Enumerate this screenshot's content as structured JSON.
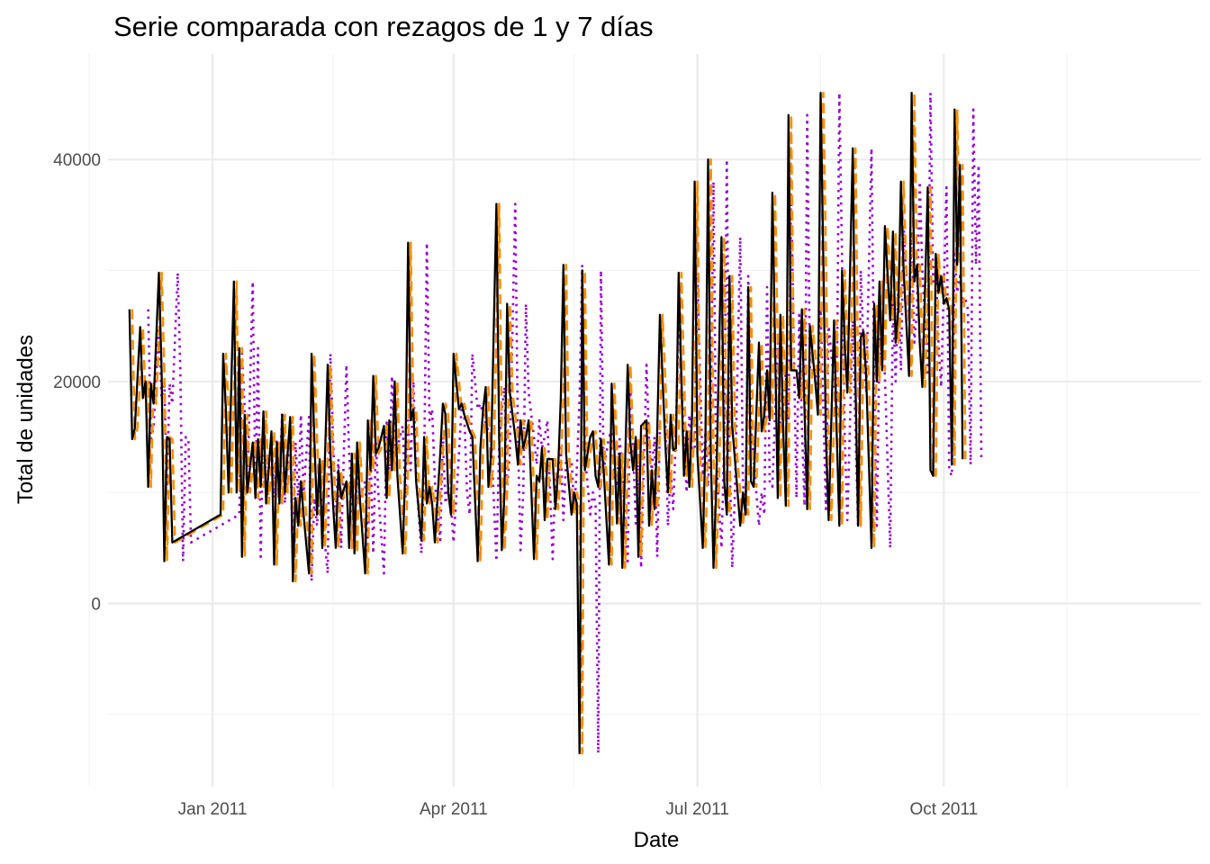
{
  "chart_data": {
    "type": "line",
    "title": "Serie comparada con rezagos de 1 y 7 días",
    "xlabel": "Date",
    "ylabel": "Total de unidades",
    "x_ticks": [
      "Jan 2011",
      "Apr 2011",
      "Jul 2011",
      "Oct 2011"
    ],
    "y_ticks": [
      "0",
      "20000",
      "40000"
    ],
    "xlim": [
      "2010-11-23",
      "2012-01-05"
    ],
    "ylim": [
      -16500,
      49500
    ],
    "legend": "none",
    "grid": true,
    "colors": {
      "serie": "#000000",
      "lag1": "#ff8c00",
      "lag7": "#9400d3"
    },
    "lags": {
      "lag1": 1,
      "lag7": 7
    },
    "series": [
      {
        "style": "solid",
        "color": "#000000",
        "points": [
          [
            "2010-12-01",
            26500
          ],
          [
            "2010-12-02",
            14800
          ],
          [
            "2010-12-03",
            15800
          ],
          [
            "2010-12-05",
            24900
          ],
          [
            "2010-12-06",
            18500
          ],
          [
            "2010-12-07",
            20000
          ],
          [
            "2010-12-08",
            10500
          ],
          [
            "2010-12-09",
            19800
          ],
          [
            "2010-12-10",
            18000
          ],
          [
            "2010-12-12",
            29800
          ],
          [
            "2010-12-13",
            21000
          ],
          [
            "2010-12-14",
            3800
          ],
          [
            "2010-12-15",
            15000
          ],
          [
            "2010-12-16",
            14800
          ],
          [
            "2010-12-17",
            5500
          ],
          [
            "2011-01-04",
            8000
          ],
          [
            "2011-01-05",
            22500
          ],
          [
            "2011-01-06",
            17500
          ],
          [
            "2011-01-07",
            10000
          ],
          [
            "2011-01-09",
            29000
          ],
          [
            "2011-01-10",
            10000
          ],
          [
            "2011-01-11",
            23000
          ],
          [
            "2011-01-12",
            4200
          ],
          [
            "2011-01-13",
            17000
          ],
          [
            "2011-01-14",
            10000
          ],
          [
            "2011-01-16",
            14500
          ],
          [
            "2011-01-17",
            9500
          ],
          [
            "2011-01-18",
            14800
          ],
          [
            "2011-01-19",
            10500
          ],
          [
            "2011-01-20",
            17300
          ],
          [
            "2011-01-21",
            9000
          ],
          [
            "2011-01-23",
            15500
          ],
          [
            "2011-01-24",
            3500
          ],
          [
            "2011-01-25",
            14500
          ],
          [
            "2011-01-26",
            9000
          ],
          [
            "2011-01-27",
            17000
          ],
          [
            "2011-01-28",
            10000
          ],
          [
            "2011-01-30",
            16800
          ],
          [
            "2011-01-31",
            2000
          ],
          [
            "2011-02-01",
            9500
          ],
          [
            "2011-02-02",
            7000
          ],
          [
            "2011-02-03",
            11000
          ],
          [
            "2011-02-04",
            8000
          ],
          [
            "2011-02-06",
            2700
          ],
          [
            "2011-02-07",
            22500
          ],
          [
            "2011-02-08",
            15000
          ],
          [
            "2011-02-09",
            8000
          ],
          [
            "2011-02-10",
            13000
          ],
          [
            "2011-02-11",
            5000
          ],
          [
            "2011-02-13",
            21500
          ],
          [
            "2011-02-14",
            13500
          ],
          [
            "2011-02-15",
            9000
          ],
          [
            "2011-02-16",
            5000
          ],
          [
            "2011-02-17",
            12000
          ],
          [
            "2011-02-18",
            9500
          ],
          [
            "2011-02-20",
            11000
          ],
          [
            "2011-02-21",
            5000
          ],
          [
            "2011-02-22",
            13500
          ],
          [
            "2011-02-23",
            4500
          ],
          [
            "2011-02-24",
            14500
          ],
          [
            "2011-02-25",
            9500
          ],
          [
            "2011-02-27",
            2700
          ],
          [
            "2011-02-28",
            16500
          ],
          [
            "2011-03-01",
            12000
          ],
          [
            "2011-03-02",
            20500
          ],
          [
            "2011-03-03",
            13500
          ],
          [
            "2011-03-04",
            14000
          ],
          [
            "2011-03-06",
            16000
          ],
          [
            "2011-03-07",
            9500
          ],
          [
            "2011-03-08",
            16500
          ],
          [
            "2011-03-09",
            12000
          ],
          [
            "2011-03-10",
            20000
          ],
          [
            "2011-03-11",
            11500
          ],
          [
            "2011-03-13",
            4500
          ],
          [
            "2011-03-14",
            12500
          ],
          [
            "2011-03-15",
            32500
          ],
          [
            "2011-03-16",
            16500
          ],
          [
            "2011-03-17",
            17500
          ],
          [
            "2011-03-18",
            11000
          ],
          [
            "2011-03-20",
            5700
          ],
          [
            "2011-03-21",
            15000
          ],
          [
            "2011-03-22",
            9000
          ],
          [
            "2011-03-23",
            10500
          ],
          [
            "2011-03-24",
            9000
          ],
          [
            "2011-03-25",
            5500
          ],
          [
            "2011-03-27",
            13500
          ],
          [
            "2011-03-28",
            18000
          ],
          [
            "2011-03-29",
            17000
          ],
          [
            "2011-03-30",
            10000
          ],
          [
            "2011-03-31",
            8000
          ],
          [
            "2011-04-01",
            22500
          ],
          [
            "2011-04-03",
            17500
          ],
          [
            "2011-04-04",
            18000
          ],
          [
            "2011-04-05",
            17000
          ],
          [
            "2011-04-07",
            15500
          ],
          [
            "2011-04-08",
            15000
          ],
          [
            "2011-04-10",
            3800
          ],
          [
            "2011-04-11",
            14000
          ],
          [
            "2011-04-12",
            17500
          ],
          [
            "2011-04-13",
            19500
          ],
          [
            "2011-04-14",
            10500
          ],
          [
            "2011-04-15",
            13500
          ],
          [
            "2011-04-17",
            36000
          ],
          [
            "2011-04-18",
            15000
          ],
          [
            "2011-04-19",
            4800
          ],
          [
            "2011-04-20",
            10000
          ],
          [
            "2011-04-21",
            27000
          ],
          [
            "2011-04-22",
            19000
          ],
          [
            "2011-04-24",
            15000
          ],
          [
            "2011-04-25",
            12500
          ],
          [
            "2011-04-26",
            16500
          ],
          [
            "2011-04-27",
            14000
          ],
          [
            "2011-04-28",
            15000
          ],
          [
            "2011-04-29",
            16500
          ],
          [
            "2011-05-01",
            4000
          ],
          [
            "2011-05-02",
            11500
          ],
          [
            "2011-05-03",
            11000
          ],
          [
            "2011-05-04",
            14000
          ],
          [
            "2011-05-05",
            7500
          ],
          [
            "2011-05-06",
            13000
          ],
          [
            "2011-05-08",
            13000
          ],
          [
            "2011-05-09",
            8500
          ],
          [
            "2011-05-10",
            12000
          ],
          [
            "2011-05-11",
            18500
          ],
          [
            "2011-05-12",
            30500
          ],
          [
            "2011-05-13",
            13500
          ],
          [
            "2011-05-15",
            8000
          ],
          [
            "2011-05-16",
            10000
          ],
          [
            "2011-05-17",
            9000
          ],
          [
            "2011-05-18",
            -13500
          ],
          [
            "2011-05-19",
            30000
          ],
          [
            "2011-05-20",
            12000
          ],
          [
            "2011-05-22",
            15000
          ],
          [
            "2011-05-23",
            15500
          ],
          [
            "2011-05-24",
            11500
          ],
          [
            "2011-05-25",
            10500
          ],
          [
            "2011-05-26",
            14800
          ],
          [
            "2011-05-27",
            12000
          ],
          [
            "2011-05-29",
            3500
          ],
          [
            "2011-05-30",
            19800
          ],
          [
            "2011-05-31",
            14000
          ],
          [
            "2011-06-01",
            7200
          ],
          [
            "2011-06-02",
            13500
          ],
          [
            "2011-06-03",
            3200
          ],
          [
            "2011-06-05",
            21500
          ],
          [
            "2011-06-06",
            14500
          ],
          [
            "2011-06-07",
            12000
          ],
          [
            "2011-06-08",
            15000
          ],
          [
            "2011-06-09",
            4200
          ],
          [
            "2011-06-10",
            16000
          ],
          [
            "2011-06-12",
            16500
          ],
          [
            "2011-06-13",
            7000
          ],
          [
            "2011-06-14",
            12000
          ],
          [
            "2011-06-15",
            8500
          ],
          [
            "2011-06-16",
            15500
          ],
          [
            "2011-06-17",
            26000
          ],
          [
            "2011-06-19",
            14500
          ],
          [
            "2011-06-20",
            10000
          ],
          [
            "2011-06-21",
            17000
          ],
          [
            "2011-06-22",
            13800
          ],
          [
            "2011-06-23",
            14000
          ],
          [
            "2011-06-24",
            29800
          ],
          [
            "2011-06-26",
            11500
          ],
          [
            "2011-06-27",
            15500
          ],
          [
            "2011-06-28",
            10500
          ],
          [
            "2011-06-29",
            17000
          ],
          [
            "2011-06-30",
            38000
          ],
          [
            "2011-07-01",
            13500
          ],
          [
            "2011-07-03",
            5000
          ],
          [
            "2011-07-04",
            14500
          ],
          [
            "2011-07-05",
            40000
          ],
          [
            "2011-07-06",
            13500
          ],
          [
            "2011-07-07",
            3200
          ],
          [
            "2011-07-08",
            10000
          ],
          [
            "2011-07-10",
            33000
          ],
          [
            "2011-07-11",
            11000
          ],
          [
            "2011-07-12",
            8000
          ],
          [
            "2011-07-13",
            29500
          ],
          [
            "2011-07-14",
            16000
          ],
          [
            "2011-07-15",
            13000
          ],
          [
            "2011-07-17",
            7000
          ],
          [
            "2011-07-18",
            10000
          ],
          [
            "2011-07-19",
            8000
          ],
          [
            "2011-07-20",
            28500
          ],
          [
            "2011-07-21",
            11000
          ],
          [
            "2011-07-22",
            10500
          ],
          [
            "2011-07-24",
            23500
          ],
          [
            "2011-07-25",
            15500
          ],
          [
            "2011-07-26",
            17000
          ],
          [
            "2011-07-27",
            21000
          ],
          [
            "2011-07-28",
            16500
          ],
          [
            "2011-07-29",
            37000
          ],
          [
            "2011-07-31",
            9500
          ],
          [
            "2011-08-01",
            26000
          ],
          [
            "2011-08-02",
            16000
          ],
          [
            "2011-08-03",
            8800
          ],
          [
            "2011-08-04",
            44000
          ],
          [
            "2011-08-05",
            21000
          ],
          [
            "2011-08-07",
            21000
          ],
          [
            "2011-08-08",
            18500
          ],
          [
            "2011-08-09",
            26500
          ],
          [
            "2011-08-10",
            17500
          ],
          [
            "2011-08-11",
            8500
          ],
          [
            "2011-08-12",
            25000
          ],
          [
            "2011-08-14",
            20000
          ],
          [
            "2011-08-15",
            17000
          ],
          [
            "2011-08-16",
            46000
          ],
          [
            "2011-08-17",
            31000
          ],
          [
            "2011-08-18",
            15000
          ],
          [
            "2011-08-19",
            7500
          ],
          [
            "2011-08-21",
            25500
          ],
          [
            "2011-08-22",
            15500
          ],
          [
            "2011-08-23",
            7000
          ],
          [
            "2011-08-24",
            30000
          ],
          [
            "2011-08-25",
            23500
          ],
          [
            "2011-08-26",
            19000
          ],
          [
            "2011-08-28",
            41000
          ],
          [
            "2011-08-29",
            20000
          ],
          [
            "2011-08-30",
            7000
          ],
          [
            "2011-08-31",
            24000
          ],
          [
            "2011-09-01",
            24500
          ],
          [
            "2011-09-02",
            20500
          ],
          [
            "2011-09-04",
            5000
          ],
          [
            "2011-09-05",
            27000
          ],
          [
            "2011-09-06",
            20000
          ],
          [
            "2011-09-07",
            29000
          ],
          [
            "2011-09-08",
            21000
          ],
          [
            "2011-09-09",
            34000
          ],
          [
            "2011-09-11",
            25500
          ],
          [
            "2011-09-12",
            33500
          ],
          [
            "2011-09-13",
            23500
          ],
          [
            "2011-09-14",
            26500
          ],
          [
            "2011-09-15",
            38000
          ],
          [
            "2011-09-16",
            30000
          ],
          [
            "2011-09-18",
            20500
          ],
          [
            "2011-09-19",
            46000
          ],
          [
            "2011-09-20",
            29000
          ],
          [
            "2011-09-21",
            30500
          ],
          [
            "2011-09-22",
            23500
          ],
          [
            "2011-09-23",
            19500
          ],
          [
            "2011-09-25",
            37500
          ],
          [
            "2011-09-26",
            12000
          ],
          [
            "2011-09-27",
            11500
          ],
          [
            "2011-09-28",
            31500
          ],
          [
            "2011-09-29",
            28000
          ],
          [
            "2011-09-30",
            29500
          ],
          [
            "2011-10-01",
            27000
          ],
          [
            "2011-10-02",
            27500
          ],
          [
            "2011-10-03",
            26500
          ],
          [
            "2011-10-04",
            12500
          ],
          [
            "2011-10-05",
            44500
          ],
          [
            "2011-10-06",
            30500
          ],
          [
            "2011-10-07",
            39500
          ],
          [
            "2011-10-08",
            13000
          ]
        ]
      },
      {
        "style": "dashed",
        "color": "#ff8c00",
        "lag": 1
      },
      {
        "style": "dotted",
        "color": "#9400d3",
        "lag": 7
      }
    ]
  }
}
